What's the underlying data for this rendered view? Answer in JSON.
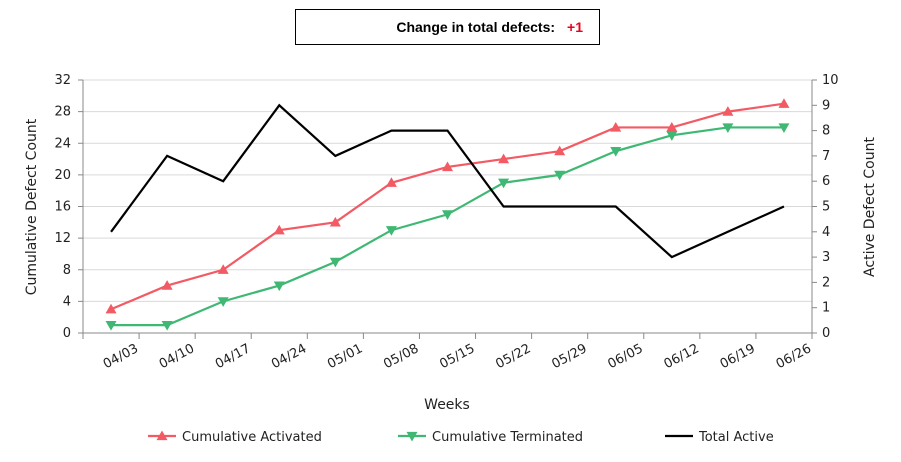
{
  "summary": {
    "label": "Change in total defects:",
    "value": "+1",
    "value_color": "#e8001c"
  },
  "chart_data": {
    "type": "line",
    "title": "",
    "xlabel": "Weeks",
    "ylabel": "Cumulative Defect Count",
    "y2label": "Active Defect Count",
    "categories": [
      "04/03",
      "04/10",
      "04/17",
      "04/24",
      "05/01",
      "05/08",
      "05/15",
      "05/22",
      "05/29",
      "06/05",
      "06/12",
      "06/19",
      "06/26"
    ],
    "ylim": [
      0,
      32
    ],
    "yticks": [
      0,
      4,
      8,
      12,
      16,
      20,
      24,
      28,
      32
    ],
    "y2lim": [
      0,
      10
    ],
    "y2ticks": [
      0,
      1,
      2,
      3,
      4,
      5,
      6,
      7,
      8,
      9,
      10
    ],
    "grid": true,
    "legend_position": "bottom",
    "series": [
      {
        "name": "Cumulative Activated",
        "axis": "left",
        "color": "#f25a64",
        "marker": "triangle-up",
        "x": [
          0.5,
          1.5,
          2.5,
          3.5,
          4.5,
          5.5,
          6.5,
          7.5,
          8.5,
          9.5,
          10.5,
          11.5,
          12.5
        ],
        "values": [
          3,
          6,
          8,
          13,
          14,
          19,
          21,
          22,
          23,
          26,
          26,
          28,
          29
        ]
      },
      {
        "name": "Cumulative Terminated",
        "axis": "left",
        "color": "#3fb873",
        "marker": "triangle-down",
        "x": [
          0.5,
          1.5,
          2.5,
          3.5,
          4.5,
          5.5,
          6.5,
          7.5,
          8.5,
          9.5,
          10.5,
          11.5,
          12.5
        ],
        "values": [
          1,
          1,
          4,
          6,
          9,
          13,
          15,
          19,
          20,
          23,
          25,
          26,
          26
        ]
      },
      {
        "name": "Total Active",
        "axis": "right",
        "color": "#000000",
        "marker": "none",
        "x": [
          0.5,
          1.5,
          2.5,
          3.5,
          4.5,
          5.5,
          6.5,
          7.5,
          8.5,
          9.5,
          10.5,
          11.5,
          12.5
        ],
        "values": [
          4,
          7,
          6,
          9,
          7,
          8,
          8,
          5,
          5,
          5,
          3,
          4,
          5
        ]
      }
    ]
  }
}
